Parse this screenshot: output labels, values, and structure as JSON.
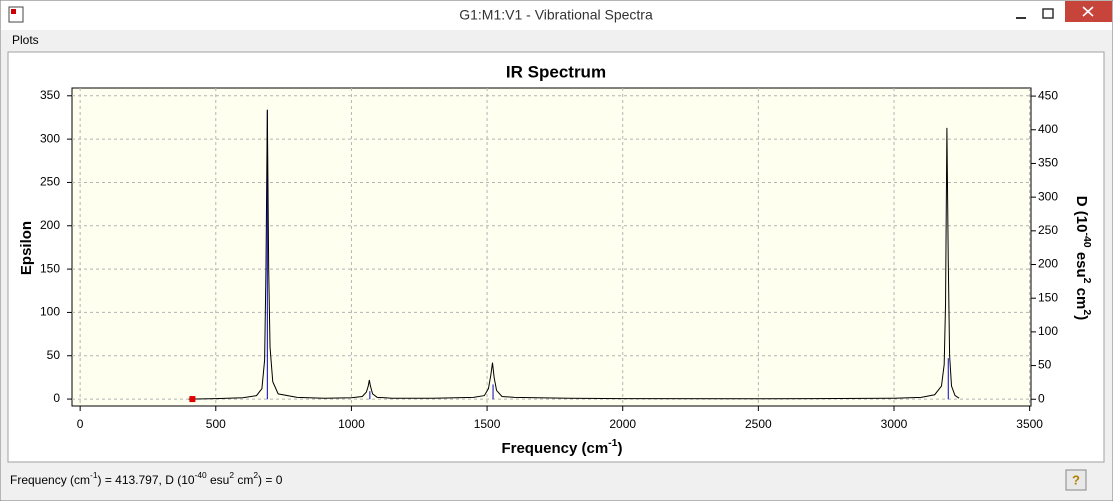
{
  "window": {
    "title": "G1:M1:V1 - Vibrational Spectra",
    "menu": [
      "Plots"
    ]
  },
  "status": [
    "Frequency (cm",
    "-1",
    ") = 413.797, D (10",
    "-40",
    " esu",
    "2",
    " cm",
    "2",
    ") = 0"
  ],
  "chart_data": {
    "type": "spectrum",
    "title": "IR Spectrum",
    "x_label": [
      "Frequency (cm",
      "-1",
      ")"
    ],
    "y_label": "Epsilon",
    "y2_label": [
      "D (10",
      "-40",
      " esu",
      "2",
      " cm",
      "2",
      ")"
    ],
    "xlim": [
      -30,
      3505
    ],
    "xticks": [
      0,
      500,
      1000,
      1500,
      2000,
      2500,
      3000,
      3500
    ],
    "ylim": [
      -8,
      359
    ],
    "yticks": [
      0,
      50,
      100,
      150,
      200,
      250,
      300,
      350
    ],
    "y2lim": [
      -10,
      462
    ],
    "y2ticks": [
      0,
      50,
      100,
      150,
      200,
      250,
      300,
      350,
      400,
      450
    ],
    "grid": true,
    "series": [
      {
        "type": "line",
        "color": "#000000",
        "x": [
          400,
          500,
          600,
          650,
          670,
          680,
          685,
          688,
          690,
          692,
          695,
          700,
          710,
          730,
          800,
          900,
          1000,
          1040,
          1055,
          1062,
          1066,
          1070,
          1078,
          1095,
          1150,
          1300,
          1450,
          1490,
          1505,
          1514,
          1520,
          1526,
          1535,
          1555,
          1600,
          1800,
          2000,
          2500,
          2700,
          3000,
          3100,
          3150,
          3175,
          3185,
          3190,
          3195,
          3200,
          3205,
          3212,
          3225,
          3240
        ],
        "values": [
          0,
          0.5,
          1.5,
          4,
          12,
          45,
          150,
          260,
          334,
          260,
          150,
          60,
          20,
          6,
          2,
          1,
          1.5,
          3,
          8,
          15,
          22,
          15,
          6,
          2,
          1,
          1,
          2,
          4,
          12,
          28,
          42,
          25,
          10,
          3,
          2,
          1,
          0.5,
          0.3,
          0.5,
          1,
          2,
          5,
          15,
          40,
          110,
          313,
          160,
          50,
          15,
          4,
          1
        ]
      },
      {
        "type": "stick",
        "axis": "y2",
        "color": "#0000cc",
        "x": [
          690,
          1068,
          1522,
          3200
        ],
        "values": [
          429,
          12,
          22,
          61
        ]
      }
    ],
    "cursor": {
      "x": 413.797,
      "y": 0,
      "color": "#e00000"
    }
  }
}
